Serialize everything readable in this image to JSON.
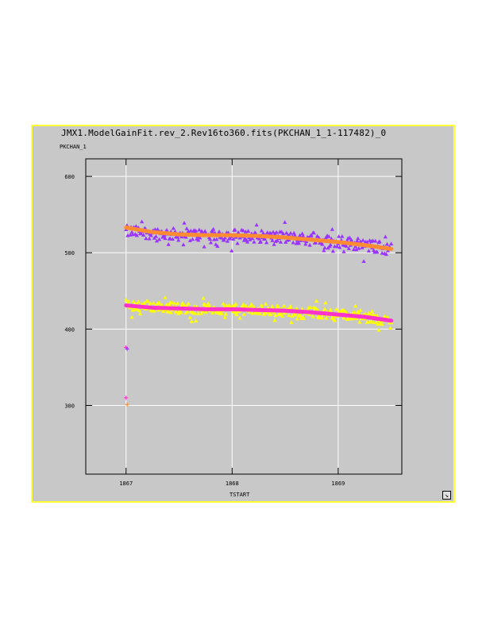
{
  "window": {
    "title": "JMX1.ModelGainFit.rev_2.Rev16to360.fits(PKCHAN_1_1-117482)_0",
    "resize_icon": "resize-corner-icon"
  },
  "colors": {
    "background": "#c8c8c8",
    "plot_area": "#ffffff",
    "frame": "#ffff33",
    "grid": "#ffffff",
    "series_upper_points": "#9933ff",
    "series_upper_fit": "#ff8c33",
    "series_lower_points": "#ffff00",
    "series_lower_fit": "#ff33cc"
  },
  "chart_data": {
    "type": "scatter",
    "title": "JMX1.ModelGainFit.rev_2.Rev16to360.fits(PKCHAN_1_1-117482)_0",
    "xlabel": "TSTART",
    "ylabel": "PKCHAN_1",
    "xlim": [
      1866.62,
      1869.6
    ],
    "ylim": [
      210,
      623
    ],
    "xticks": [
      1867,
      1868,
      1869
    ],
    "yticks": [
      300,
      400,
      500,
      600
    ],
    "grid": true,
    "legend": "none",
    "series": [
      {
        "kind": "points",
        "color": "#9933ff",
        "trend": [
          [
            1867.0,
            528
          ],
          [
            1867.5,
            524
          ],
          [
            1868.0,
            523
          ],
          [
            1868.5,
            520
          ],
          [
            1869.0,
            515
          ],
          [
            1869.5,
            505
          ]
        ],
        "spread": 8
      },
      {
        "kind": "fit",
        "color": "#ff8c33",
        "x": [
          1867.0,
          1867.25,
          1867.5,
          1867.75,
          1868.0,
          1868.25,
          1868.5,
          1868.75,
          1869.0,
          1869.25,
          1869.5
        ],
        "y": [
          533,
          527,
          524,
          523,
          523,
          522,
          520,
          517,
          514,
          510,
          505
        ]
      },
      {
        "kind": "points",
        "color": "#ffff00",
        "trend": [
          [
            1867.0,
            432
          ],
          [
            1867.5,
            428
          ],
          [
            1868.0,
            426
          ],
          [
            1868.5,
            424
          ],
          [
            1869.0,
            420
          ],
          [
            1869.5,
            410
          ]
        ],
        "spread": 7
      },
      {
        "kind": "fit",
        "color": "#ff33cc",
        "x": [
          1867.0,
          1867.25,
          1867.5,
          1867.75,
          1868.0,
          1868.25,
          1868.5,
          1868.75,
          1869.0,
          1869.25,
          1869.5
        ],
        "y": [
          431,
          428,
          427,
          426,
          426,
          425,
          424,
          422,
          419,
          416,
          411
        ]
      },
      {
        "kind": "outliers",
        "points": [
          {
            "x": 1867.0,
            "y": 376,
            "color": "#ff33cc"
          },
          {
            "x": 1867.01,
            "y": 374,
            "color": "#9933ff"
          },
          {
            "x": 1867.0,
            "y": 310,
            "color": "#ff33cc"
          },
          {
            "x": 1867.01,
            "y": 301,
            "color": "#ff8c33"
          }
        ]
      }
    ]
  }
}
